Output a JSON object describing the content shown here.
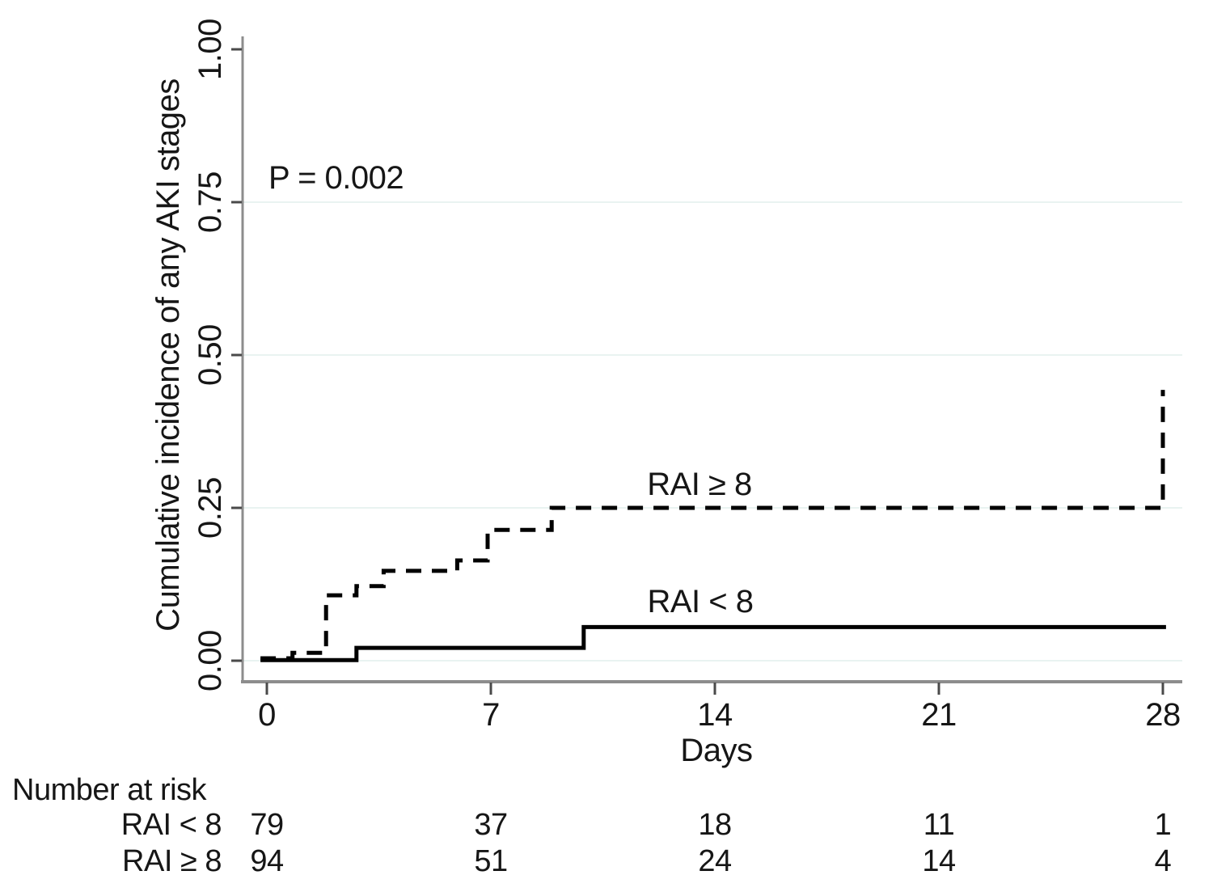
{
  "chart_data": {
    "type": "line",
    "subtype": "step-cumulative-incidence",
    "title": "",
    "xlabel": "Days",
    "ylabel": "Cumulative incidence of any AKI stages",
    "annotation": "P = 0.002",
    "xlim": [
      0,
      28
    ],
    "ylim": [
      0,
      1
    ],
    "grid": "horizontal-only",
    "grid_values": [
      0,
      0.25,
      0.5,
      0.75
    ],
    "x_axis": {
      "ticks": [
        {
          "value": 0,
          "label": "0"
        },
        {
          "value": 7,
          "label": "7"
        },
        {
          "value": 14,
          "label": "14"
        },
        {
          "value": 21,
          "label": "21"
        },
        {
          "value": 28,
          "label": "28"
        }
      ]
    },
    "y_axis": {
      "ticks": [
        {
          "value": 0.0,
          "label": "0.00"
        },
        {
          "value": 0.25,
          "label": "0.25"
        },
        {
          "value": 0.5,
          "label": "0.50"
        },
        {
          "value": 0.75,
          "label": "0.75"
        },
        {
          "value": 1.0,
          "label": "1.00"
        }
      ]
    },
    "series": [
      {
        "name": "RAI ≥ 8",
        "line_style": "dashed",
        "points": [
          [
            -0.2,
            0.004
          ],
          [
            0.8,
            0.013
          ],
          [
            1.85,
            0.107
          ],
          [
            2.8,
            0.122
          ],
          [
            3.65,
            0.147
          ],
          [
            5.95,
            0.164
          ],
          [
            6.9,
            0.214
          ],
          [
            8.9,
            0.25
          ],
          [
            28,
            0.443
          ]
        ],
        "end_x": null
      },
      {
        "name": "RAI < 8",
        "line_style": "solid",
        "points": [
          [
            -0.2,
            0.001
          ],
          [
            2.8,
            0.021
          ],
          [
            9.9,
            0.055
          ]
        ],
        "end_x": 28.1
      }
    ],
    "number_at_risk": {
      "title": "Number at risk",
      "times": [
        0,
        7,
        14,
        21,
        28
      ],
      "rows": [
        {
          "label": "RAI < 8",
          "counts": [
            "79",
            "37",
            "18",
            "11",
            "1"
          ]
        },
        {
          "label": "RAI ≥ 8",
          "counts": [
            "94",
            "51",
            "24",
            "14",
            "4"
          ]
        }
      ]
    }
  },
  "colors": {
    "curve": "#000000",
    "axis": "#8d8d8d",
    "tick": "#4a4a4a",
    "gridline": "#e9f3f1",
    "text": "#161616",
    "background": "#ffffff"
  }
}
